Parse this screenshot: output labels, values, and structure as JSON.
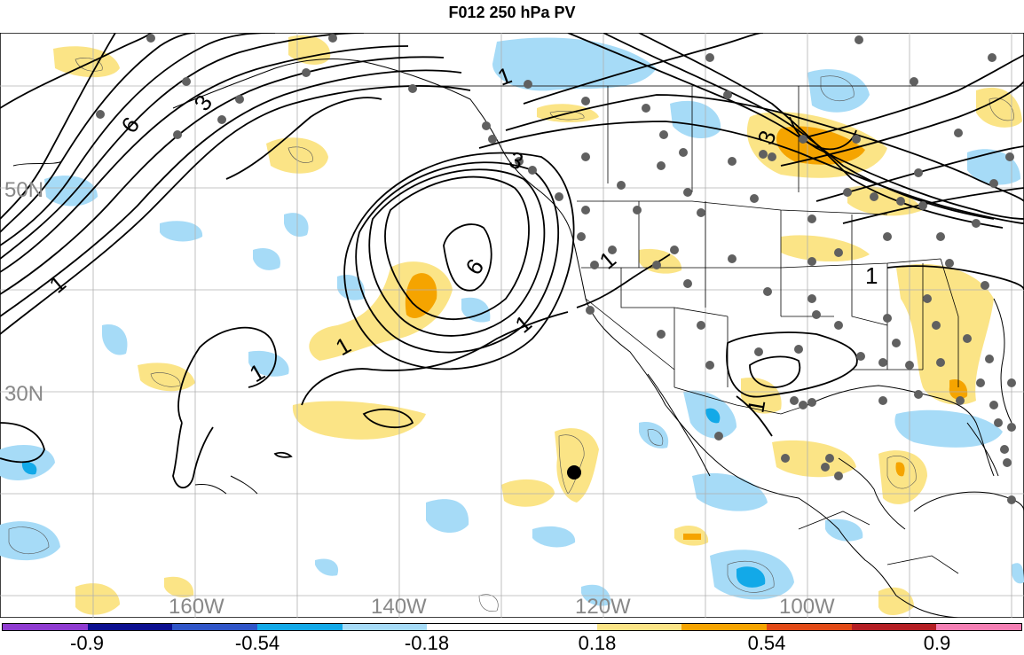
{
  "title": "F012 250 hPa PV",
  "map": {
    "lat_labels": [
      "50N",
      "30N"
    ],
    "lon_labels": [
      "160W",
      "140W",
      "120W",
      "100W"
    ],
    "contour_labels": [
      "6",
      "3",
      "1",
      "3",
      "6",
      "1",
      "1",
      "1",
      "1",
      "1",
      "3",
      "1",
      "1"
    ]
  },
  "colorbar": {
    "ticks": [
      "-0.9",
      "-0.54",
      "-0.18",
      "0.18",
      "0.54",
      "0.9"
    ],
    "colors": [
      "#8f3bd1",
      "#0b0f8f",
      "#2f55c8",
      "#12a9e8",
      "#a6dbf7",
      "#ffffff",
      "#ffffff",
      "#fbe486",
      "#f5a400",
      "#e24a16",
      "#b41e24",
      "#f47fb4"
    ]
  }
}
